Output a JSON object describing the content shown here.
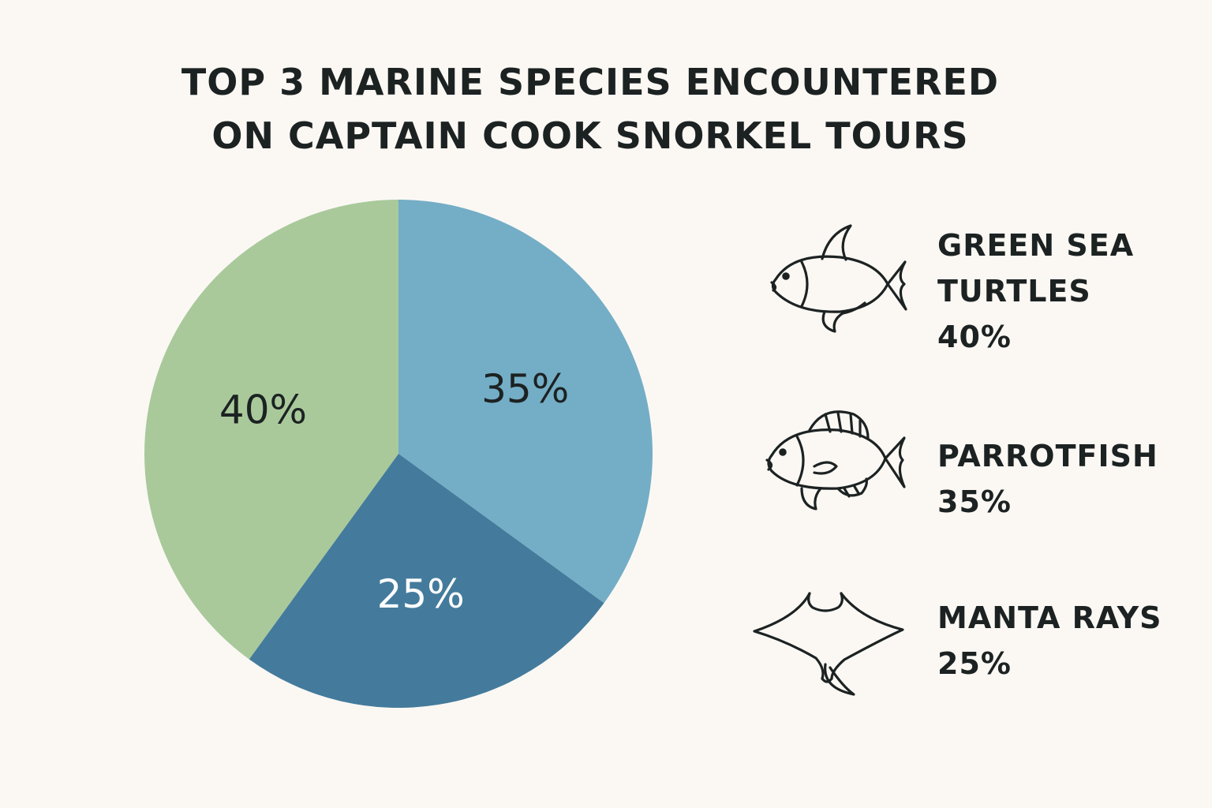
{
  "title": {
    "line1": "TOP 3 MARINE SPECIES ENCOUNTERED",
    "line2": "ON CAPTAIN COOK SNORKEL TOURS"
  },
  "chart_data": {
    "type": "pie",
    "title": "TOP 3 MARINE SPECIES ENCOUNTERED ON CAPTAIN COOK SNORKEL TOURS",
    "slices": [
      {
        "label": "PARROTFISH",
        "value": 35,
        "display": "35%",
        "color": "#74adc6",
        "label_color": "#1c2222"
      },
      {
        "label": "MANTA RAYS",
        "value": 25,
        "display": "25%",
        "color": "#447b9c",
        "label_color": "#ffffff"
      },
      {
        "label": "GREEN SEA TURTLES",
        "value": 40,
        "display": "40%",
        "color": "#a9c99b",
        "label_color": "#1c2222"
      }
    ],
    "legend": [
      {
        "name_lines": [
          "GREEN SEA",
          "TURTLES"
        ],
        "percent": "40%",
        "icon": "fish-icon"
      },
      {
        "name_lines": [
          "PARROTFISH"
        ],
        "percent": "35%",
        "icon": "parrotfish-icon"
      },
      {
        "name_lines": [
          "MANTA RAYS"
        ],
        "percent": "25%",
        "icon": "manta-ray-icon"
      }
    ]
  }
}
